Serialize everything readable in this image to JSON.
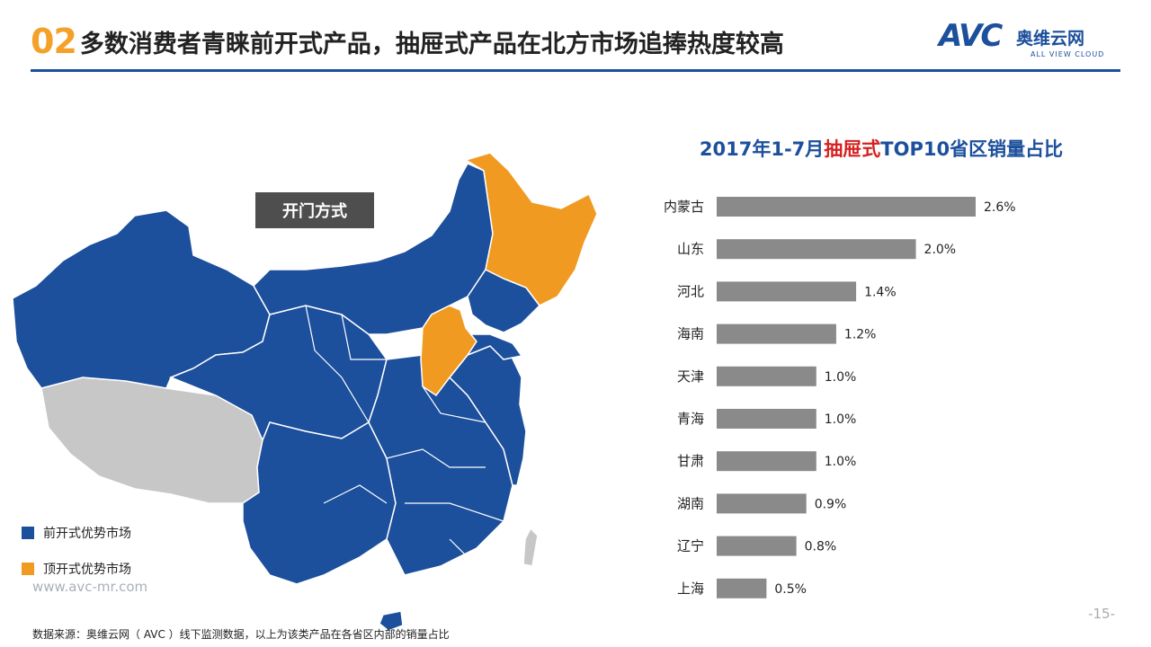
{
  "header": {
    "number": "02",
    "title": "多数消费者青睐前开式产品，抽屉式产品在北方市场追捧热度较高"
  },
  "logo": {
    "mark": "AVC",
    "name_cn": "奥维云网",
    "name_en": "ALL VIEW CLOUD"
  },
  "map": {
    "badge": "开门方式"
  },
  "legend": [
    {
      "label": "前开式优势市场",
      "color": "#1c4f9c"
    },
    {
      "label": "顶开式优势市场",
      "color": "#f19a21"
    }
  ],
  "colors": {
    "front_open": "#1c4f9c",
    "top_open": "#f19a21",
    "other": "#c7c7c7",
    "bar": "#8a8a8a"
  },
  "footer": {
    "url": "www.avc-mr.com",
    "source": "数据来源：奥维云网（ AVC ）线下监测数据，以上为该类产品在各省区内部的销量占比",
    "page": "-15-"
  },
  "chart_title": {
    "prefix": "2017年1-7月",
    "highlight": "抽屉式",
    "suffix": "TOP10省区销量占比"
  },
  "chart_data": {
    "type": "bar",
    "orientation": "horizontal",
    "categories": [
      "内蒙古",
      "山东",
      "河北",
      "海南",
      "天津",
      "青海",
      "甘肃",
      "湖南",
      "辽宁",
      "上海"
    ],
    "values": [
      2.6,
      2.0,
      1.4,
      1.2,
      1.0,
      1.0,
      1.0,
      0.9,
      0.8,
      0.5
    ],
    "labels": [
      "2.6%",
      "2.0%",
      "1.4%",
      "1.2%",
      "1.0%",
      "1.0%",
      "1.0%",
      "0.9%",
      "0.8%",
      "0.5%"
    ],
    "title": "2017年1-7月抽屉式TOP10省区销量占比",
    "xlim": [
      0,
      2.6
    ],
    "grid": false,
    "legend": "none"
  }
}
